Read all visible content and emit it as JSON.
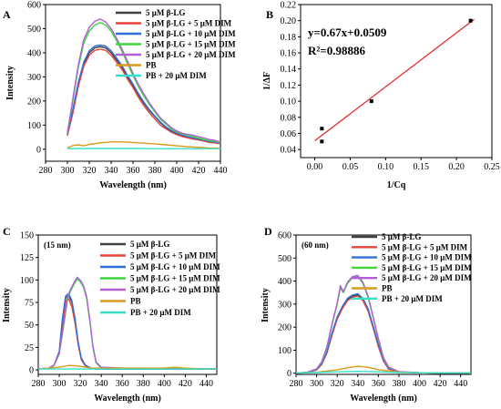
{
  "chart_data": [
    {
      "panel": "A",
      "type": "line",
      "annotation": "",
      "xlabel": "Wavelength (nm)",
      "ylabel": "Intensity",
      "xlim": [
        280,
        440
      ],
      "ylim": [
        -50,
        600
      ],
      "xticks": [
        280,
        300,
        320,
        340,
        360,
        380,
        400,
        420,
        440
      ],
      "yticks": [
        0,
        100,
        200,
        300,
        400,
        500,
        600
      ],
      "series": [
        {
          "name": "5 μM β-LG",
          "color": "#404040",
          "x": [
            300,
            305,
            310,
            315,
            320,
            325,
            330,
            335,
            340,
            345,
            350,
            355,
            360,
            365,
            370,
            375,
            380,
            385,
            390,
            395,
            400,
            405,
            410,
            415,
            420,
            425,
            430,
            435,
            440
          ],
          "y": [
            60,
            160,
            270,
            355,
            400,
            420,
            425,
            420,
            400,
            370,
            340,
            300,
            265,
            225,
            190,
            160,
            135,
            110,
            90,
            75,
            65,
            55,
            50,
            45,
            40,
            35,
            30,
            28,
            25
          ]
        },
        {
          "name": "5 μM β-LG + 5 μM DIM",
          "color": "#e8443a",
          "x": [
            300,
            305,
            310,
            315,
            320,
            325,
            330,
            335,
            340,
            345,
            350,
            355,
            360,
            365,
            370,
            375,
            380,
            385,
            390,
            395,
            400,
            405,
            410,
            415,
            420,
            425,
            430,
            435,
            440
          ],
          "y": [
            55,
            150,
            260,
            345,
            390,
            410,
            415,
            410,
            390,
            360,
            330,
            290,
            255,
            215,
            180,
            150,
            125,
            100,
            85,
            70,
            60,
            52,
            47,
            42,
            38,
            33,
            28,
            26,
            23
          ]
        },
        {
          "name": "5 μM β-LG + 10 μM DIM",
          "color": "#2f6fd8",
          "x": [
            300,
            305,
            310,
            315,
            320,
            325,
            330,
            335,
            340,
            345,
            350,
            355,
            360,
            365,
            370,
            375,
            380,
            385,
            390,
            395,
            400,
            405,
            410,
            415,
            420,
            425,
            430,
            435,
            440
          ],
          "y": [
            62,
            165,
            278,
            362,
            408,
            428,
            432,
            428,
            408,
            378,
            346,
            306,
            270,
            230,
            195,
            164,
            138,
            113,
            93,
            78,
            67,
            58,
            52,
            47,
            42,
            37,
            32,
            29,
            26
          ]
        },
        {
          "name": "5 μM β-LG + 15 μM DIM",
          "color": "#3fd63f",
          "x": [
            300,
            305,
            310,
            315,
            320,
            325,
            330,
            335,
            340,
            345,
            350,
            355,
            360,
            365,
            370,
            375,
            380,
            385,
            390,
            395,
            400,
            405,
            410,
            415,
            420,
            425,
            430,
            435,
            440
          ],
          "y": [
            65,
            200,
            340,
            440,
            490,
            515,
            525,
            515,
            490,
            450,
            405,
            355,
            305,
            260,
            220,
            185,
            155,
            125,
            105,
            85,
            72,
            63,
            58,
            52,
            46,
            40,
            35,
            32,
            28
          ]
        },
        {
          "name": "5 μM β-LG + 20 μM DIM",
          "color": "#b25fd6",
          "x": [
            300,
            305,
            310,
            315,
            320,
            325,
            330,
            335,
            340,
            345,
            350,
            355,
            360,
            365,
            370,
            375,
            380,
            385,
            390,
            395,
            400,
            405,
            410,
            415,
            420,
            425,
            430,
            435,
            440
          ],
          "y": [
            68,
            210,
            350,
            455,
            505,
            530,
            540,
            528,
            500,
            460,
            415,
            365,
            315,
            268,
            228,
            192,
            160,
            130,
            110,
            90,
            76,
            66,
            62,
            58,
            52,
            46,
            40,
            36,
            30
          ]
        },
        {
          "name": "PB",
          "color": "#d99a1e",
          "x": [
            300,
            305,
            310,
            315,
            320,
            330,
            340,
            350,
            360,
            370,
            380,
            390,
            400,
            410,
            420,
            430,
            440
          ],
          "y": [
            5,
            15,
            18,
            14,
            20,
            26,
            30,
            30,
            28,
            25,
            22,
            18,
            14,
            10,
            8,
            5,
            4
          ]
        },
        {
          "name": "PB + 20 μM DIM",
          "color": "#36e0c6",
          "x": [
            300,
            320,
            340,
            360,
            380,
            400,
            420,
            440
          ],
          "y": [
            2,
            3,
            3,
            3,
            2,
            2,
            2,
            2
          ]
        }
      ]
    },
    {
      "panel": "B",
      "type": "scatter",
      "annotation": "",
      "xlabel": "1/Cq",
      "ylabel": "1/ΔF",
      "xlim": [
        -0.02,
        0.25
      ],
      "ylim": [
        0.03,
        0.22
      ],
      "xticks": [
        0.0,
        0.05,
        0.1,
        0.15,
        0.2,
        0.25
      ],
      "yticks": [
        0.04,
        0.06,
        0.08,
        0.1,
        0.12,
        0.14,
        0.16,
        0.18,
        0.2,
        0.22
      ],
      "equation": "y=0.67x+0.0509",
      "r2": "R²=0.98886",
      "points": {
        "x": [
          0.01,
          0.01,
          0.08,
          0.22
        ],
        "y": [
          0.05,
          0.066,
          0.1,
          0.2
        ]
      },
      "fit": {
        "slope": 0.67,
        "intercept": 0.0509,
        "x_range": [
          0.0,
          0.225
        ],
        "color": "#e03030"
      }
    },
    {
      "panel": "C",
      "type": "line",
      "annotation": "(15 nm)",
      "xlabel": "Wavelength (nm)",
      "ylabel": "Intensity",
      "xlim": [
        280,
        450
      ],
      "ylim": [
        -5,
        150
      ],
      "xticks": [
        280,
        300,
        320,
        340,
        360,
        380,
        400,
        420,
        440
      ],
      "yticks": [
        0,
        25,
        50,
        75,
        100,
        125,
        150
      ],
      "series": [
        {
          "name": "5 μM β-LG",
          "color": "#404040",
          "x": [
            280,
            290,
            295,
            300,
            303,
            306,
            309,
            312,
            315,
            318,
            321,
            325,
            330,
            335,
            340,
            360,
            380,
            400,
            420,
            440,
            450
          ],
          "y": [
            1,
            2,
            5,
            20,
            55,
            80,
            83,
            75,
            55,
            30,
            12,
            5,
            2,
            1,
            1,
            1,
            1,
            1,
            1,
            1,
            1
          ]
        },
        {
          "name": "5 μM β-LG + 5 μM DIM",
          "color": "#e8443a",
          "x": [
            280,
            290,
            295,
            300,
            303,
            306,
            309,
            312,
            315,
            318,
            321,
            325,
            330,
            335,
            340,
            360,
            380,
            400,
            420,
            440,
            450
          ],
          "y": [
            1,
            2,
            5,
            18,
            50,
            76,
            79,
            70,
            52,
            28,
            11,
            4,
            2,
            1,
            1,
            1,
            1,
            1,
            1,
            1,
            1
          ]
        },
        {
          "name": "5 μM β-LG + 10 μM DIM",
          "color": "#2f6fd8",
          "x": [
            280,
            290,
            295,
            300,
            303,
            306,
            309,
            312,
            315,
            318,
            321,
            325,
            330,
            335,
            340,
            360,
            380,
            400,
            420,
            440,
            450
          ],
          "y": [
            1,
            2,
            5,
            21,
            57,
            82,
            85,
            77,
            57,
            31,
            13,
            5,
            2,
            1,
            1,
            1,
            1,
            1,
            1,
            1,
            1
          ]
        },
        {
          "name": "5 μM β-LG + 15 μM DIM",
          "color": "#3fd63f",
          "x": [
            280,
            290,
            295,
            300,
            305,
            308,
            311,
            314,
            317,
            320,
            323,
            326,
            329,
            332,
            335,
            340,
            360,
            380,
            400,
            420,
            440,
            450
          ],
          "y": [
            1,
            2,
            5,
            18,
            55,
            80,
            88,
            95,
            101,
            98,
            92,
            80,
            55,
            25,
            8,
            2,
            2,
            1,
            1,
            1,
            1,
            1
          ]
        },
        {
          "name": "5 μM β-LG + 20 μM DIM",
          "color": "#b25fd6",
          "x": [
            280,
            290,
            295,
            300,
            305,
            308,
            311,
            314,
            317,
            320,
            323,
            326,
            329,
            332,
            335,
            340,
            360,
            380,
            400,
            420,
            440,
            450
          ],
          "y": [
            1,
            2,
            5,
            19,
            57,
            82,
            90,
            97,
            103,
            100,
            94,
            82,
            57,
            27,
            9,
            3,
            2,
            1,
            1,
            1,
            1,
            1
          ]
        },
        {
          "name": "PB",
          "color": "#d99a1e",
          "x": [
            280,
            300,
            310,
            320,
            330,
            360,
            400,
            410,
            420,
            440,
            450
          ],
          "y": [
            1,
            3,
            5,
            4,
            2,
            2,
            2,
            3,
            2,
            1,
            1
          ]
        },
        {
          "name": "PB + 20 μM DIM",
          "color": "#36e0c6",
          "x": [
            280,
            320,
            360,
            400,
            450
          ],
          "y": [
            1,
            1,
            1,
            1,
            1
          ]
        }
      ]
    },
    {
      "panel": "D",
      "type": "line",
      "annotation": "(60 nm)",
      "xlabel": "Wavelength (nm)",
      "ylabel": "Intensity",
      "xlim": [
        280,
        450
      ],
      "ylim": [
        -5,
        600
      ],
      "xticks": [
        280,
        300,
        320,
        340,
        360,
        380,
        400,
        420,
        440
      ],
      "yticks": [
        0,
        100,
        200,
        300,
        400,
        500,
        600
      ],
      "series": [
        {
          "name": "5 μM β-LG",
          "color": "#404040",
          "x": [
            280,
            290,
            300,
            305,
            310,
            315,
            320,
            325,
            330,
            335,
            340,
            345,
            350,
            355,
            360,
            365,
            370,
            380,
            400,
            420,
            440,
            450
          ],
          "y": [
            1,
            3,
            15,
            40,
            90,
            170,
            240,
            285,
            320,
            335,
            340,
            320,
            275,
            200,
            120,
            55,
            20,
            5,
            2,
            1,
            1,
            1
          ]
        },
        {
          "name": "5 μM β-LG + 5 μM DIM",
          "color": "#e8443a",
          "x": [
            280,
            290,
            300,
            305,
            310,
            315,
            320,
            325,
            330,
            335,
            340,
            345,
            350,
            355,
            360,
            365,
            370,
            380,
            400,
            420,
            440,
            450
          ],
          "y": [
            1,
            3,
            14,
            38,
            88,
            165,
            235,
            280,
            315,
            330,
            335,
            315,
            270,
            195,
            115,
            52,
            18,
            5,
            2,
            1,
            1,
            1
          ]
        },
        {
          "name": "5 μM β-LG + 10 μM DIM",
          "color": "#2f6fd8",
          "x": [
            280,
            290,
            300,
            305,
            310,
            315,
            320,
            325,
            330,
            335,
            340,
            345,
            350,
            355,
            360,
            365,
            370,
            380,
            400,
            420,
            440,
            450
          ],
          "y": [
            1,
            3,
            16,
            42,
            92,
            175,
            245,
            290,
            325,
            340,
            345,
            325,
            280,
            205,
            125,
            58,
            22,
            6,
            2,
            1,
            1,
            1
          ]
        },
        {
          "name": "5 μM β-LG + 15 μM DIM",
          "color": "#3fd63f",
          "x": [
            280,
            290,
            300,
            305,
            310,
            315,
            320,
            323,
            326,
            330,
            335,
            340,
            345,
            350,
            355,
            360,
            365,
            370,
            380,
            400,
            420,
            440,
            450
          ],
          "y": [
            1,
            3,
            18,
            48,
            110,
            210,
            300,
            370,
            350,
            390,
            415,
            420,
            390,
            330,
            240,
            145,
            65,
            25,
            6,
            2,
            1,
            1,
            1
          ]
        },
        {
          "name": "5 μM β-LG + 20 μM DIM",
          "color": "#b25fd6",
          "x": [
            280,
            290,
            300,
            305,
            310,
            315,
            320,
            323,
            326,
            330,
            335,
            340,
            345,
            350,
            355,
            360,
            365,
            370,
            380,
            400,
            420,
            440,
            450
          ],
          "y": [
            1,
            3,
            19,
            50,
            115,
            215,
            305,
            380,
            355,
            395,
            420,
            425,
            395,
            335,
            245,
            150,
            68,
            27,
            7,
            2,
            1,
            1,
            1
          ]
        },
        {
          "name": "PB",
          "color": "#d99a1e",
          "x": [
            280,
            300,
            320,
            330,
            340,
            350,
            360,
            380,
            400,
            450
          ],
          "y": [
            1,
            4,
            15,
            24,
            30,
            26,
            15,
            5,
            2,
            1
          ]
        },
        {
          "name": "PB + 20 μM DIM",
          "color": "#36e0c6",
          "x": [
            280,
            300,
            320,
            340,
            360,
            380,
            400,
            450
          ],
          "y": [
            1,
            3,
            6,
            8,
            6,
            3,
            2,
            1
          ]
        }
      ]
    }
  ]
}
